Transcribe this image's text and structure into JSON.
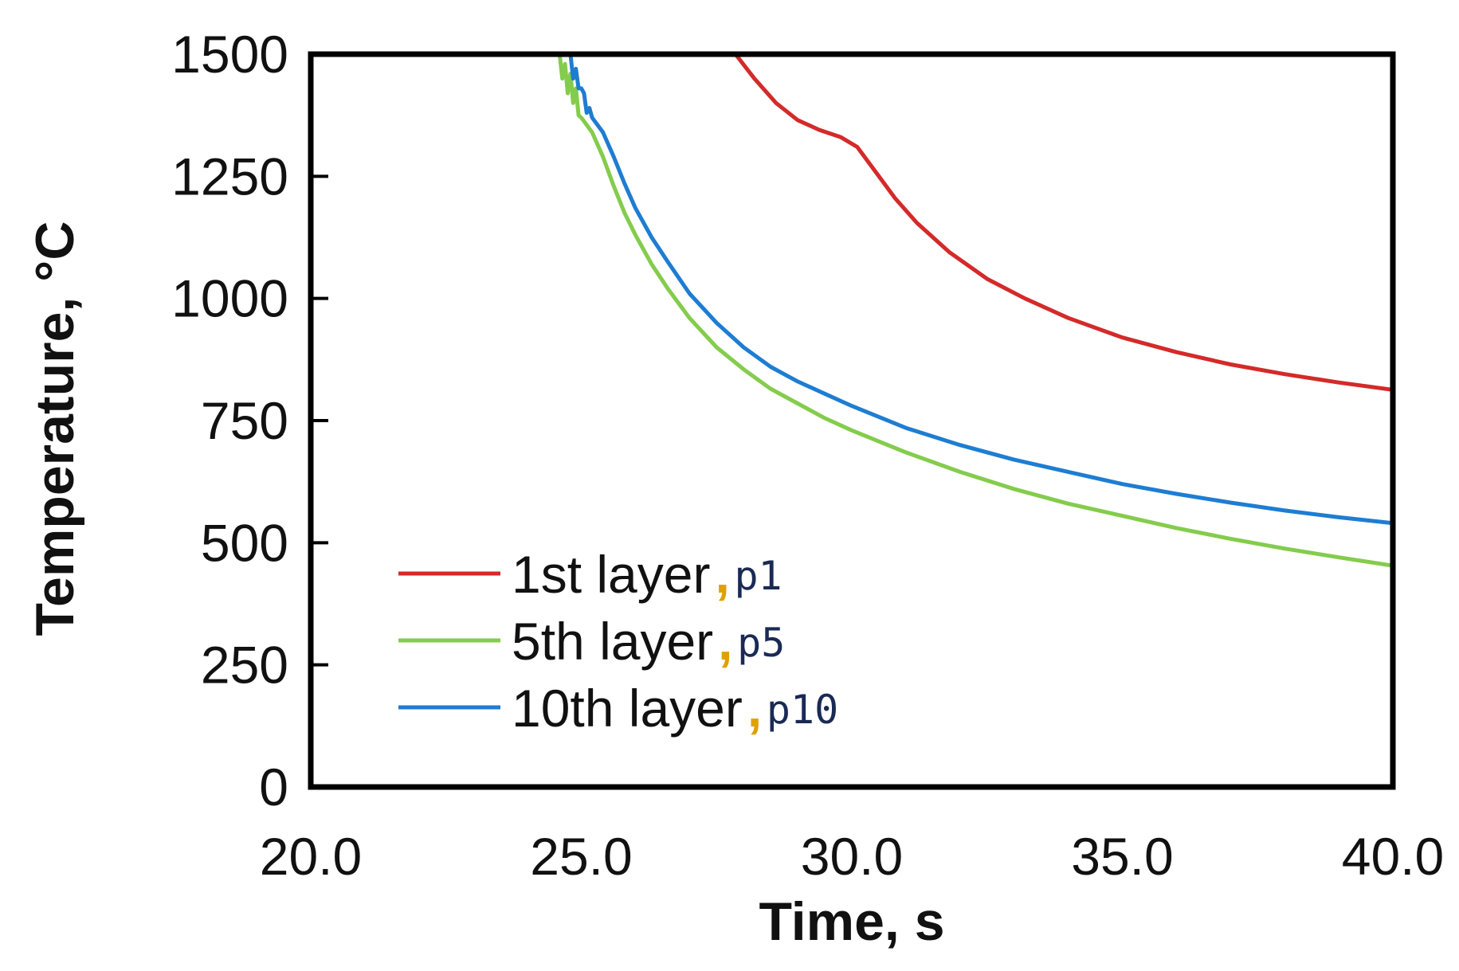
{
  "chart_data": {
    "type": "line",
    "xlabel": "Time, s",
    "ylabel": "Temperature, °C",
    "xlim": [
      20.0,
      40.0
    ],
    "ylim": [
      0,
      1500
    ],
    "x_ticks": [
      "20.0",
      "25.0",
      "30.0",
      "35.0",
      "40.0"
    ],
    "y_ticks": [
      "0",
      "250",
      "500",
      "750",
      "1000",
      "1250",
      "1500"
    ],
    "grid": false,
    "legend_position": "lower-left",
    "series": [
      {
        "name": "1st layer",
        "tag": "p1",
        "color": "#d42a2a",
        "x": [
          27.85,
          28.2,
          28.6,
          29.0,
          29.4,
          29.8,
          30.1,
          30.4,
          30.8,
          31.2,
          31.8,
          32.5,
          33.2,
          34.0,
          35.0,
          36.0,
          37.0,
          38.0,
          39.0,
          40.0
        ],
        "y": [
          1500,
          1450,
          1400,
          1365,
          1345,
          1330,
          1310,
          1265,
          1205,
          1155,
          1095,
          1040,
          1000,
          960,
          920,
          890,
          865,
          845,
          828,
          813
        ]
      },
      {
        "name": "5th layer",
        "tag": "p5",
        "color": "#84cc4c",
        "x": [
          24.6,
          24.65,
          24.7,
          24.75,
          24.8,
          24.85,
          24.9,
          24.95,
          25.0,
          25.2,
          25.4,
          25.6,
          25.8,
          26.0,
          26.3,
          26.6,
          27.0,
          27.5,
          28.0,
          28.5,
          29.0,
          29.5,
          30.0,
          31.0,
          32.0,
          33.0,
          34.0,
          35.0,
          36.0,
          37.0,
          38.0,
          39.0,
          40.0
        ],
        "y": [
          1500,
          1450,
          1480,
          1420,
          1460,
          1400,
          1430,
          1375,
          1370,
          1340,
          1290,
          1230,
          1175,
          1130,
          1070,
          1020,
          960,
          900,
          855,
          815,
          785,
          755,
          730,
          685,
          645,
          610,
          580,
          555,
          530,
          508,
          488,
          470,
          453
        ]
      },
      {
        "name": "10th layer",
        "tag": "p10",
        "color": "#1e7dd2",
        "x": [
          24.8,
          24.85,
          24.9,
          24.95,
          25.0,
          25.05,
          25.1,
          25.15,
          25.2,
          25.4,
          25.6,
          25.8,
          26.0,
          26.3,
          26.6,
          27.0,
          27.5,
          28.0,
          28.5,
          29.0,
          29.5,
          30.0,
          31.0,
          32.0,
          33.0,
          34.0,
          35.0,
          36.0,
          37.0,
          38.0,
          39.0,
          40.0
        ],
        "y": [
          1500,
          1450,
          1470,
          1430,
          1430,
          1420,
          1380,
          1390,
          1370,
          1340,
          1290,
          1235,
          1185,
          1125,
          1075,
          1010,
          950,
          900,
          860,
          830,
          805,
          780,
          735,
          700,
          670,
          645,
          620,
          600,
          582,
          566,
          552,
          540
        ]
      }
    ]
  }
}
